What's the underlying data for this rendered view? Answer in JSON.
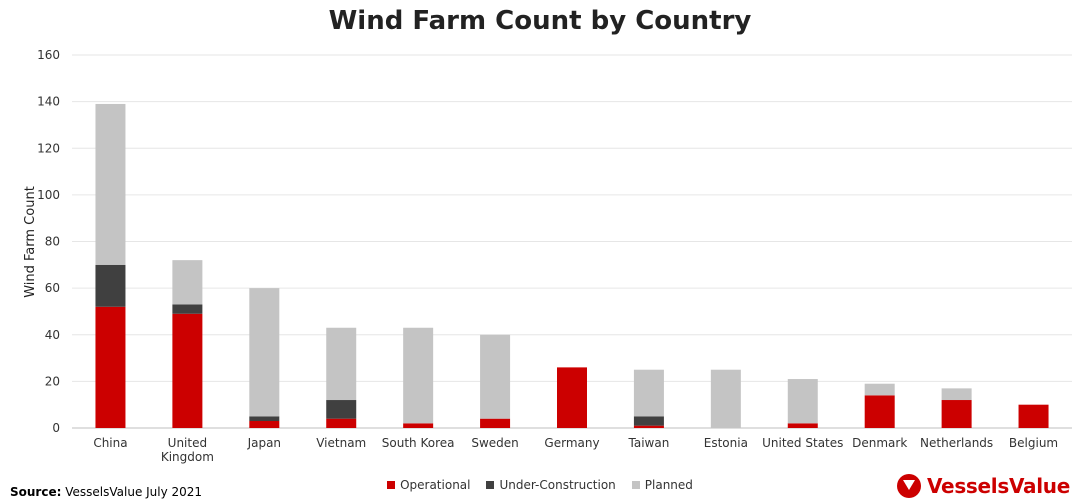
{
  "chart_data": {
    "type": "bar",
    "stacked": true,
    "title": "Wind Farm Count by Country",
    "ylabel": "Wind Farm Count",
    "xlabel": "",
    "ylim": [
      0,
      160
    ],
    "yticks": [
      0,
      20,
      40,
      60,
      80,
      100,
      120,
      140,
      160
    ],
    "grid": true,
    "legend_position": "bottom",
    "categories": [
      "China",
      "United Kingdom",
      "Japan",
      "Vietnam",
      "South Korea",
      "Sweden",
      "Germany",
      "Taiwan",
      "Estonia",
      "United States",
      "Denmark",
      "Netherlands",
      "Belgium"
    ],
    "category_lines": [
      [
        "China"
      ],
      [
        "United",
        "Kingdom"
      ],
      [
        "Japan"
      ],
      [
        "Vietnam"
      ],
      [
        "South Korea"
      ],
      [
        "Sweden"
      ],
      [
        "Germany"
      ],
      [
        "Taiwan"
      ],
      [
        "Estonia"
      ],
      [
        "United States"
      ],
      [
        "Denmark"
      ],
      [
        "Netherlands"
      ],
      [
        "Belgium"
      ]
    ],
    "series": [
      {
        "name": "Operational",
        "color": "#cc0000",
        "values": [
          52,
          49,
          3,
          4,
          2,
          4,
          26,
          1,
          0,
          2,
          14,
          12,
          10
        ]
      },
      {
        "name": "Under-Construction",
        "color": "#404040",
        "values": [
          18,
          4,
          2,
          8,
          0,
          0,
          0,
          4,
          0,
          0,
          0,
          0,
          0
        ]
      },
      {
        "name": "Planned",
        "color": "#c4c4c4",
        "values": [
          69,
          19,
          55,
          31,
          41,
          36,
          0,
          20,
          25,
          19,
          5,
          5,
          0
        ]
      }
    ]
  },
  "source": {
    "label": "Source:",
    "text": "VesselsValue July 2021"
  },
  "logo": {
    "text": "VesselsValue",
    "icon": "vesselsvalue-logo-icon"
  }
}
